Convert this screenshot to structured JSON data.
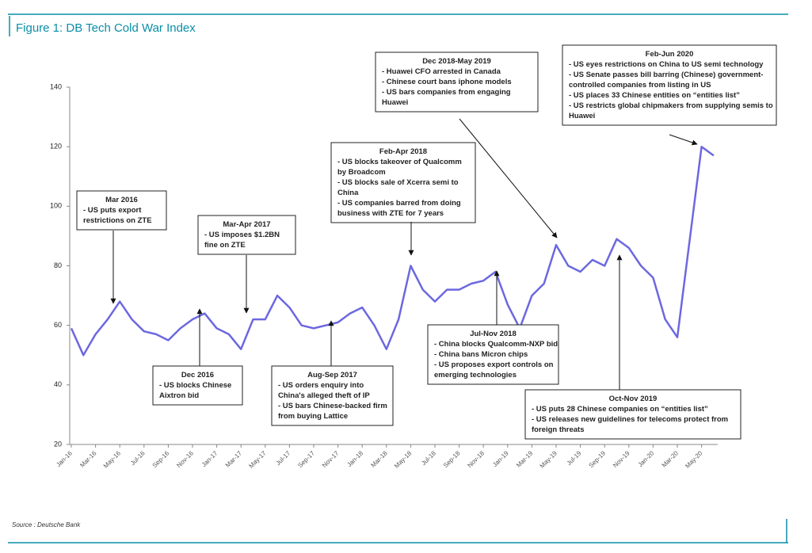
{
  "chart_data": {
    "type": "line",
    "title": "Figure 1: DB Tech Cold War Index",
    "source": "Source : Deutsche Bank",
    "categories": [
      "Jan-16",
      null,
      "Mar-16",
      null,
      "May-16",
      null,
      "Jul-16",
      null,
      "Sep-16",
      null,
      "Nov-16",
      null,
      "Jan-17",
      null,
      "Mar-17",
      null,
      "May-17",
      null,
      "Jul-17",
      null,
      "Sep-17",
      null,
      "Nov-17",
      null,
      "Jan-18",
      null,
      "Mar-18",
      null,
      "May-18",
      null,
      "Jul-18",
      null,
      "Sep-18",
      null,
      "Nov-18",
      null,
      "Jan-19",
      null,
      "Mar-19",
      null,
      "May-19",
      null,
      "Jul-19",
      null,
      "Sep-19",
      null,
      "Nov-19",
      null,
      "Jan-20",
      null,
      "Mar-20",
      null,
      "May-20",
      null
    ],
    "values": [
      59,
      50,
      57,
      62,
      68,
      62,
      58,
      57,
      55,
      59,
      62,
      64,
      59,
      57,
      52,
      62,
      62,
      70,
      66,
      60,
      59,
      60,
      61,
      64,
      66,
      60,
      52,
      62,
      80,
      72,
      68,
      72,
      72,
      74,
      75,
      78,
      67,
      59,
      70,
      74,
      87,
      80,
      78,
      82,
      80,
      89,
      86,
      80,
      76,
      62,
      56,
      88,
      120,
      117
    ],
    "color": "#6c68e0",
    "ylim": [
      20,
      140
    ],
    "yticks": [
      20,
      40,
      60,
      80,
      100,
      120,
      140
    ],
    "grid": false,
    "annotations": [
      {
        "title": "Mar 2016",
        "lines": [
          "- US puts export",
          "restrictions on ZTE"
        ]
      },
      {
        "title": "Dec 2016",
        "lines": [
          "- US blocks Chinese",
          "Aixtron bid"
        ]
      },
      {
        "title": "Mar-Apr 2017",
        "lines": [
          "- US imposes $1.2BN",
          "fine on ZTE"
        ]
      },
      {
        "title": "Aug-Sep 2017",
        "lines": [
          "- US orders enquiry into",
          "China's alleged theft of IP",
          "- US bars Chinese-backed firm",
          "from buying Lattice"
        ]
      },
      {
        "title": "Feb-Apr 2018",
        "lines": [
          "- US blocks takeover of Qualcomm",
          "by Broadcom",
          "- US blocks sale of Xcerra semi to",
          "China",
          "- US companies barred from doing",
          "business with ZTE for 7 years"
        ]
      },
      {
        "title": "Dec 2018-May 2019",
        "lines": [
          "- Huawei CFO arrested in Canada",
          "- Chinese court bans iphone models",
          "- US bars companies from engaging",
          "Huawei"
        ]
      },
      {
        "title": "Jul-Nov 2018",
        "lines": [
          "- China blocks Qualcomm-NXP bid",
          "- China bans Micron chips",
          "- US proposes export controls on",
          "emerging technologies"
        ]
      },
      {
        "title": "Feb-Jun 2020",
        "lines": [
          "- US eyes restrictions on China to US semi technology",
          "- US Senate passes bill barring (Chinese) government-",
          "controlled companies from listing in US",
          "- US places 33 Chinese entities on “entities list”",
          "- US restricts global chipmakers from supplying semis to",
          "Huawei"
        ]
      },
      {
        "title": "Oct-Nov 2019",
        "lines": [
          "- US puts 28 Chinese companies on “entities list”",
          "- US releases new guidelines for telecoms protect from",
          "foreign threats"
        ]
      }
    ]
  }
}
